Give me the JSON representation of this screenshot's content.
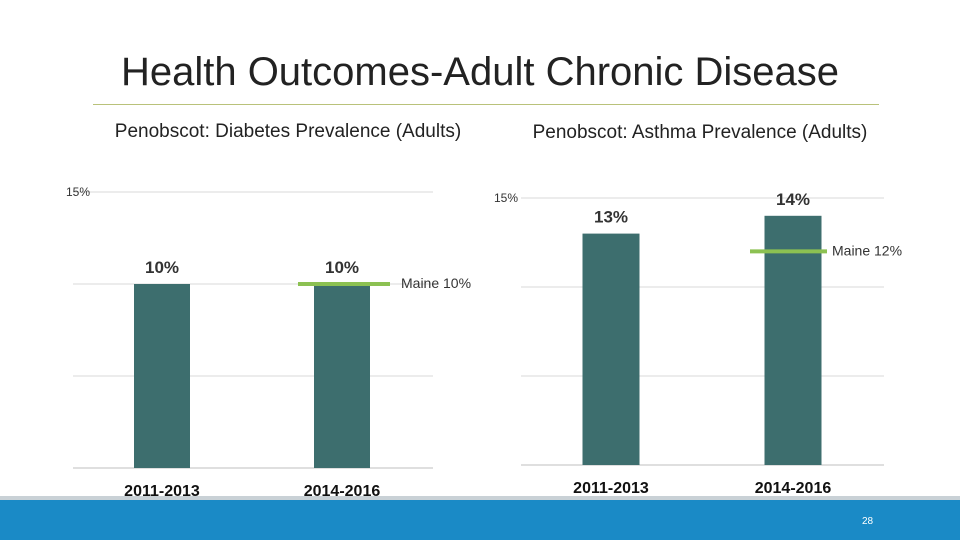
{
  "slide": {
    "title": "Health Outcomes-Adult Chronic Disease",
    "page_number": "28"
  },
  "colors": {
    "bar": "#3d6e6e",
    "benchmark": "#8cc152",
    "grid": "#d9d9d9",
    "footer": "#1a8ac6"
  },
  "chart_data": [
    {
      "type": "bar",
      "title": "Penobscot: Diabetes Prevalence (Adults)",
      "categories": [
        "2011-2013",
        "2014-2016"
      ],
      "values": [
        10,
        10
      ],
      "data_labels": [
        "10%",
        "10%"
      ],
      "ylim": [
        0,
        15
      ],
      "ytick_label": "15%",
      "benchmark": {
        "value": 10,
        "label": "Maine 10%"
      }
    },
    {
      "type": "bar",
      "title": "Penobscot: Asthma Prevalence (Adults)",
      "categories": [
        "2011-2013",
        "2014-2016"
      ],
      "values": [
        13,
        14
      ],
      "data_labels": [
        "13%",
        "14%"
      ],
      "ylim": [
        0,
        15
      ],
      "ytick_label": "15%",
      "benchmark": {
        "value": 12,
        "label": "Maine 12%"
      }
    }
  ]
}
